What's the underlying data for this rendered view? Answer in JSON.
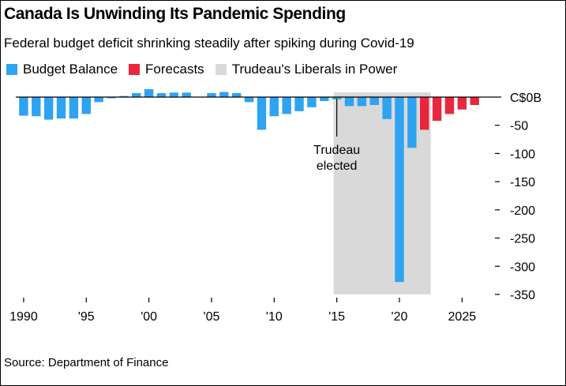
{
  "title": "Canada Is Unwinding Its Pandemic Spending",
  "subtitle": "Federal budget deficit shrinking steadily after spiking during Covid-19",
  "source": "Source: Department of Finance",
  "colors": {
    "actual": "#2ea3f2",
    "forecast": "#e8273f",
    "shade": "#d9d9d9",
    "axis": "#000000"
  },
  "legend": [
    {
      "label": "Budget Balance",
      "color": "#2ea3f2"
    },
    {
      "label": "Forecasts",
      "color": "#e8273f"
    },
    {
      "label": "Trudeau's Liberals in Power",
      "color": "#d9d9d9"
    }
  ],
  "chart_data": {
    "type": "bar",
    "ylim": [
      -350,
      0
    ],
    "xlim": [
      1989.5,
      2027.5
    ],
    "y_ticks": [
      {
        "value": 0,
        "label": "C$0B"
      },
      {
        "value": -50,
        "label": "-50"
      },
      {
        "value": -100,
        "label": "-100"
      },
      {
        "value": -150,
        "label": "-150"
      },
      {
        "value": -200,
        "label": "-200"
      },
      {
        "value": -250,
        "label": "-250"
      },
      {
        "value": -300,
        "label": "-300"
      },
      {
        "value": -350,
        "label": "-350"
      }
    ],
    "x_ticks": [
      {
        "value": 1990,
        "label": "1990"
      },
      {
        "value": 1995,
        "label": "'95"
      },
      {
        "value": 2000,
        "label": "'00"
      },
      {
        "value": 2005,
        "label": "'05"
      },
      {
        "value": 2010,
        "label": "'10"
      },
      {
        "value": 2015,
        "label": "'15"
      },
      {
        "value": 2020,
        "label": "'20"
      },
      {
        "value": 2025,
        "label": "2025"
      }
    ],
    "shaded_region": {
      "from": 2014.75,
      "to": 2022.5
    },
    "annotation": {
      "lines": [
        "Trudeau",
        "elected"
      ],
      "x": 2015,
      "y_top": -3,
      "y_bottom": -70
    },
    "series": [
      {
        "name": "Budget Balance",
        "x": [
          1990,
          1991,
          1992,
          1993,
          1994,
          1995,
          1996,
          1997,
          1998,
          1999,
          2000,
          2001,
          2002,
          2003,
          2004,
          2005,
          2006,
          2007,
          2008,
          2009,
          2010,
          2011,
          2012,
          2013,
          2014,
          2015,
          2016,
          2017,
          2018,
          2019,
          2020,
          2021
        ],
        "values": [
          -33,
          -34,
          -40,
          -38,
          -38,
          -30,
          -9,
          -2,
          2,
          7,
          14,
          7,
          8,
          8,
          0,
          7,
          9,
          7,
          -9,
          -58,
          -34,
          -30,
          -25,
          -18,
          -7,
          -4,
          -16,
          -16,
          -14,
          -39,
          -328,
          -90
        ]
      },
      {
        "name": "Forecasts",
        "x": [
          2022,
          2023,
          2024,
          2025,
          2026
        ],
        "values": [
          -58,
          -42,
          -30,
          -22,
          -14
        ]
      }
    ]
  }
}
